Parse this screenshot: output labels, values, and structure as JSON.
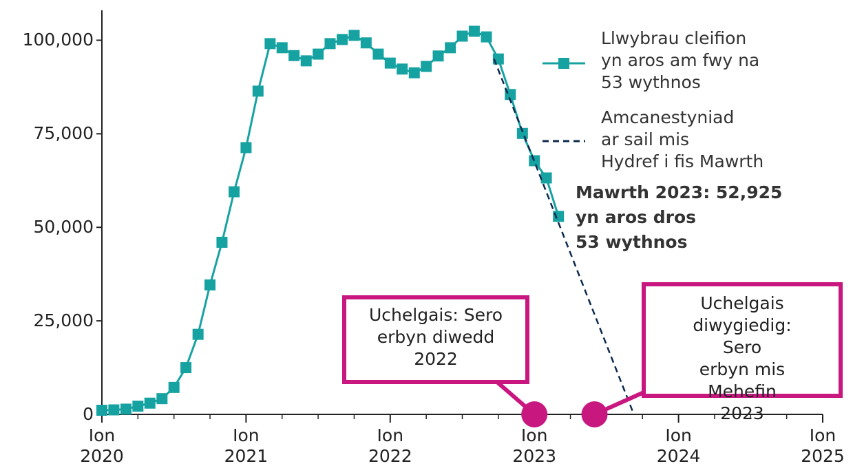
{
  "chart_data": {
    "type": "line",
    "x": [
      2020,
      2020.083,
      2020.167,
      2020.25,
      2020.333,
      2020.417,
      2020.5,
      2020.583,
      2020.667,
      2020.75,
      2020.833,
      2020.917,
      2021,
      2021.083,
      2021.167,
      2021.25,
      2021.333,
      2021.417,
      2021.5,
      2021.583,
      2021.667,
      2021.75,
      2021.833,
      2021.917,
      2022,
      2022.083,
      2022.167,
      2022.25,
      2022.333,
      2022.417,
      2022.5,
      2022.583,
      2022.667,
      2022.75,
      2022.833,
      2022.917,
      2023,
      2023.083,
      2023.167
    ],
    "series": [
      {
        "name": "Llwybrau cleifion\nyn aros am fwy na\n53 wythnos",
        "color": "#17a2a2",
        "values": [
          1100,
          1200,
          1400,
          2200,
          3000,
          4200,
          7200,
          12500,
          21400,
          34600,
          46000,
          59500,
          71300,
          86400,
          99100,
          98000,
          95900,
          94500,
          96300,
          99100,
          100200,
          101300,
          99300,
          96300,
          93900,
          92300,
          91300,
          93000,
          95800,
          98000,
          101100,
          102400,
          100900,
          95000,
          85500,
          75100,
          67800,
          63200,
          52925
        ]
      },
      {
        "name": "Amcanestyniad\nar sail mis\nHydref i fis Mawrth",
        "color": "#0d2a4f",
        "dashed": true,
        "x": [
          2022.72,
          2023.69
        ],
        "values": [
          95000,
          0
        ]
      }
    ],
    "xlim": [
      2020,
      2025
    ],
    "xticks": [
      {
        "value": 2020,
        "label": "Ion\n2020"
      },
      {
        "value": 2021,
        "label": "Ion\n2021"
      },
      {
        "value": 2022,
        "label": "Ion\n2022"
      },
      {
        "value": 2023,
        "label": "Ion\n2023"
      },
      {
        "value": 2024,
        "label": "Ion\n2024"
      },
      {
        "value": 2025,
        "label": "Ion\n2025"
      }
    ],
    "ylim": [
      0,
      108000
    ],
    "yticks": [
      0,
      {
        "value": 25000,
        "label": "25,000"
      },
      {
        "value": 50000,
        "label": "50,000"
      },
      {
        "value": 75000,
        "label": "75,000"
      },
      {
        "value": 100000,
        "label": "100,000"
      }
    ],
    "annotations": [
      {
        "text": "Mawrth 2023: 52,925\nyn aros dros\n53 wythnos"
      },
      {
        "text": "Uchelgais: Sero\nerbyn diwedd\n2022",
        "x": 2023.0,
        "value": 0,
        "color": "#c8177f"
      },
      {
        "text": "Uchelgais\ndiwygiedig: Sero\nerbyn mis\nMehefin 2023",
        "x": 2023.417,
        "value": 0,
        "color": "#c8177f"
      }
    ]
  }
}
